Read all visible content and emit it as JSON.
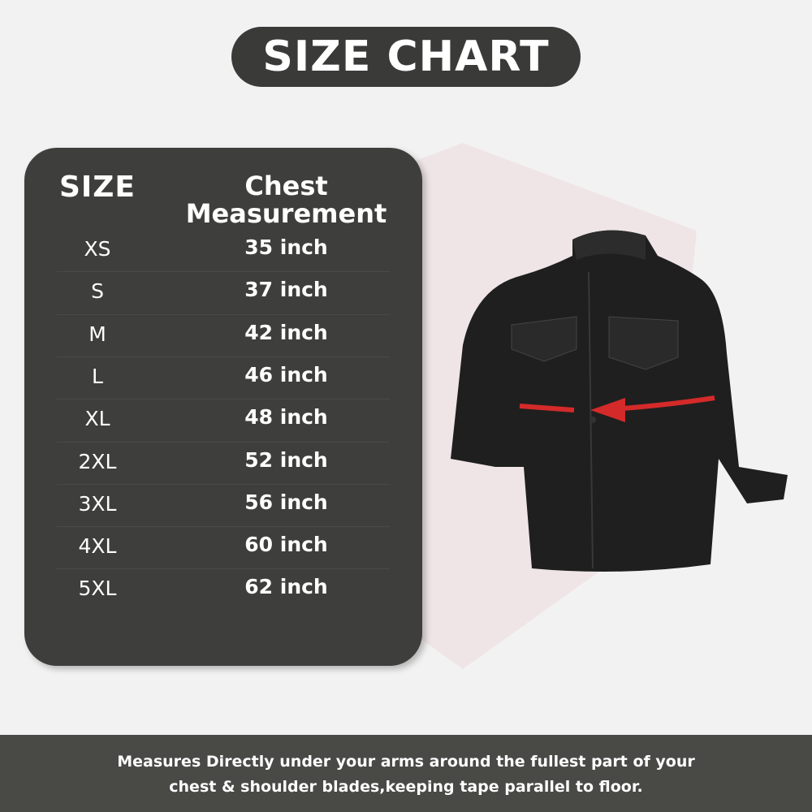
{
  "title": "SIZE CHART",
  "table": {
    "headers": {
      "size": "SIZE",
      "chest_line1": "Chest",
      "chest_line2": "Measurement"
    },
    "rows": [
      {
        "size": "XS",
        "chest": "35 inch"
      },
      {
        "size": "S",
        "chest": "37 inch"
      },
      {
        "size": "M",
        "chest": "42 inch"
      },
      {
        "size": "L",
        "chest": "46 inch"
      },
      {
        "size": "XL",
        "chest": "48 inch"
      },
      {
        "size": "2XL",
        "chest": "52 inch"
      },
      {
        "size": "3XL",
        "chest": "56 inch"
      },
      {
        "size": "4XL",
        "chest": "60 inch"
      },
      {
        "size": "5XL",
        "chest": "62 inch"
      }
    ]
  },
  "footer": {
    "line1": "Measures Directly under your arms around the fullest part of your",
    "line2": "chest & shoulder blades,keeping tape parallel to floor."
  },
  "colors": {
    "panel": "#3e3e3c",
    "arrow": "#d42a2a",
    "footer": "#494946"
  }
}
